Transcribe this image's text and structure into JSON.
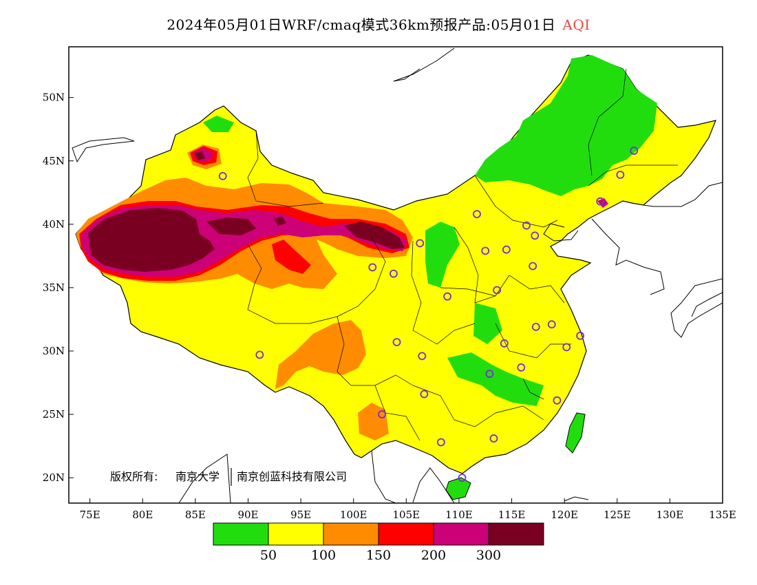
{
  "title": {
    "text": "2024年05月01日WRF/cmaq模式36km预报产品:05月01日",
    "variable": "AQI",
    "variable_color": "#e8483c"
  },
  "axes": {
    "x_ticks": [
      "75E",
      "80E",
      "85E",
      "90E",
      "95E",
      "100E",
      "105E",
      "110E",
      "115E",
      "120E",
      "125E",
      "130E",
      "135E"
    ],
    "y_ticks": [
      "50N",
      "45N",
      "40N",
      "35N",
      "30N",
      "25N",
      "20N"
    ],
    "lon_range": [
      73,
      135
    ],
    "lat_range": [
      18,
      54
    ]
  },
  "copyright": {
    "label": "版权所有:",
    "owner1": "南京大学",
    "owner2": "南京创蓝科技有限公司"
  },
  "colorbar": {
    "colors": [
      "#22dd0e",
      "#ffff00",
      "#ff8c00",
      "#ff0000",
      "#cc0077",
      "#7a0022"
    ],
    "labels": [
      "50",
      "100",
      "150",
      "200",
      "300"
    ]
  },
  "stations": [
    [
      87.6,
      43.8
    ],
    [
      91.1,
      29.7
    ],
    [
      101.8,
      36.6
    ],
    [
      103.8,
      36.1
    ],
    [
      106.3,
      38.5
    ],
    [
      111.7,
      40.8
    ],
    [
      112.5,
      37.9
    ],
    [
      114.5,
      38.0
    ],
    [
      116.4,
      39.9
    ],
    [
      117.2,
      39.1
    ],
    [
      113.6,
      34.8
    ],
    [
      117.0,
      36.7
    ],
    [
      108.9,
      34.3
    ],
    [
      104.1,
      30.7
    ],
    [
      106.5,
      29.6
    ],
    [
      106.7,
      26.6
    ],
    [
      102.7,
      25.0
    ],
    [
      108.3,
      22.8
    ],
    [
      110.3,
      20.0
    ],
    [
      113.3,
      23.1
    ],
    [
      112.9,
      28.2
    ],
    [
      114.3,
      30.6
    ],
    [
      115.9,
      28.7
    ],
    [
      117.3,
      31.9
    ],
    [
      118.8,
      32.1
    ],
    [
      120.2,
      30.3
    ],
    [
      121.5,
      31.2
    ],
    [
      119.3,
      26.1
    ],
    [
      123.4,
      41.8
    ],
    [
      125.3,
      43.9
    ],
    [
      126.6,
      45.8
    ]
  ]
}
